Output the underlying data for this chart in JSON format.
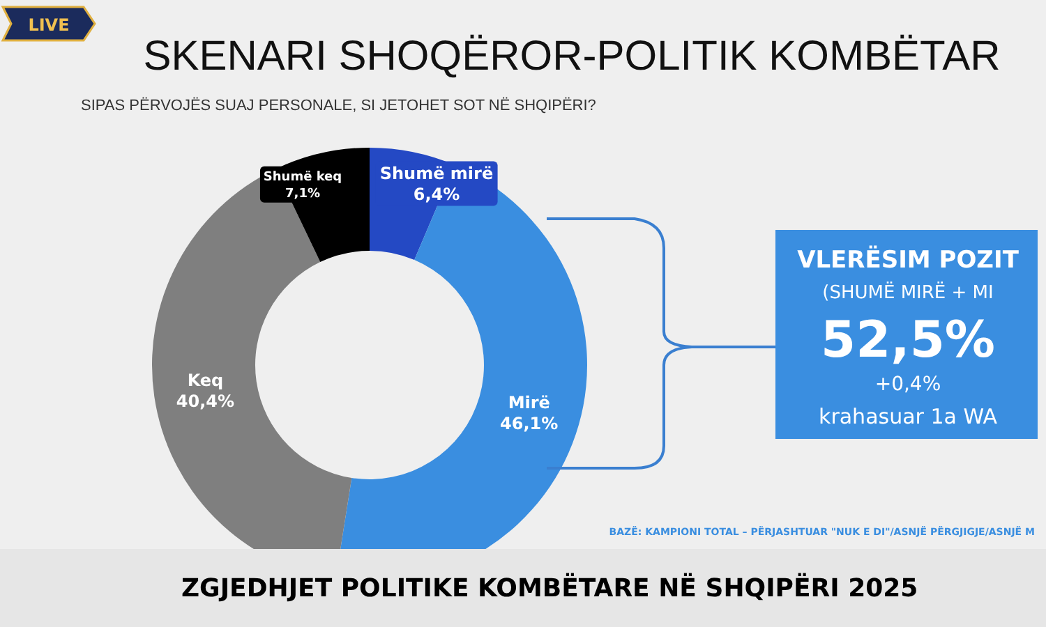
{
  "chart_data": {
    "type": "donut",
    "title": "SKENARI SHOQËROR-POLITIK KOMBËTAR",
    "subtitle": "SIPAS PËRVOJËS SUAJ PERSONALE, SI JETOHET SOT NË SHQIPËRI?",
    "categories": [
      "Shumë mirë",
      "Mirë",
      "Keq",
      "Shumë keq"
    ],
    "values": [
      6.4,
      46.1,
      40.4,
      7.1
    ],
    "colors": [
      "#2449c4",
      "#3a8ee0",
      "#7f7f7f",
      "#000000"
    ],
    "value_labels": [
      "6,4%",
      "46,1%",
      "40,4%",
      "7,1%"
    ],
    "annotations": [
      "VLERËSIM POZIT",
      "(SHUMË MIRË + MI",
      "52,5%",
      "+0,4%",
      "krahasuar 1a WA",
      "BAZË: KAMPIONI TOTAL – PËRJASHTUAR \"NUK E DI\"/ASNJË PËRGJIGJE/ASNJË M",
      "ZGJEDHJET POLITIKE KOMBËTARE NË SHQIPËRI 2025",
      "LIVE"
    ]
  }
}
